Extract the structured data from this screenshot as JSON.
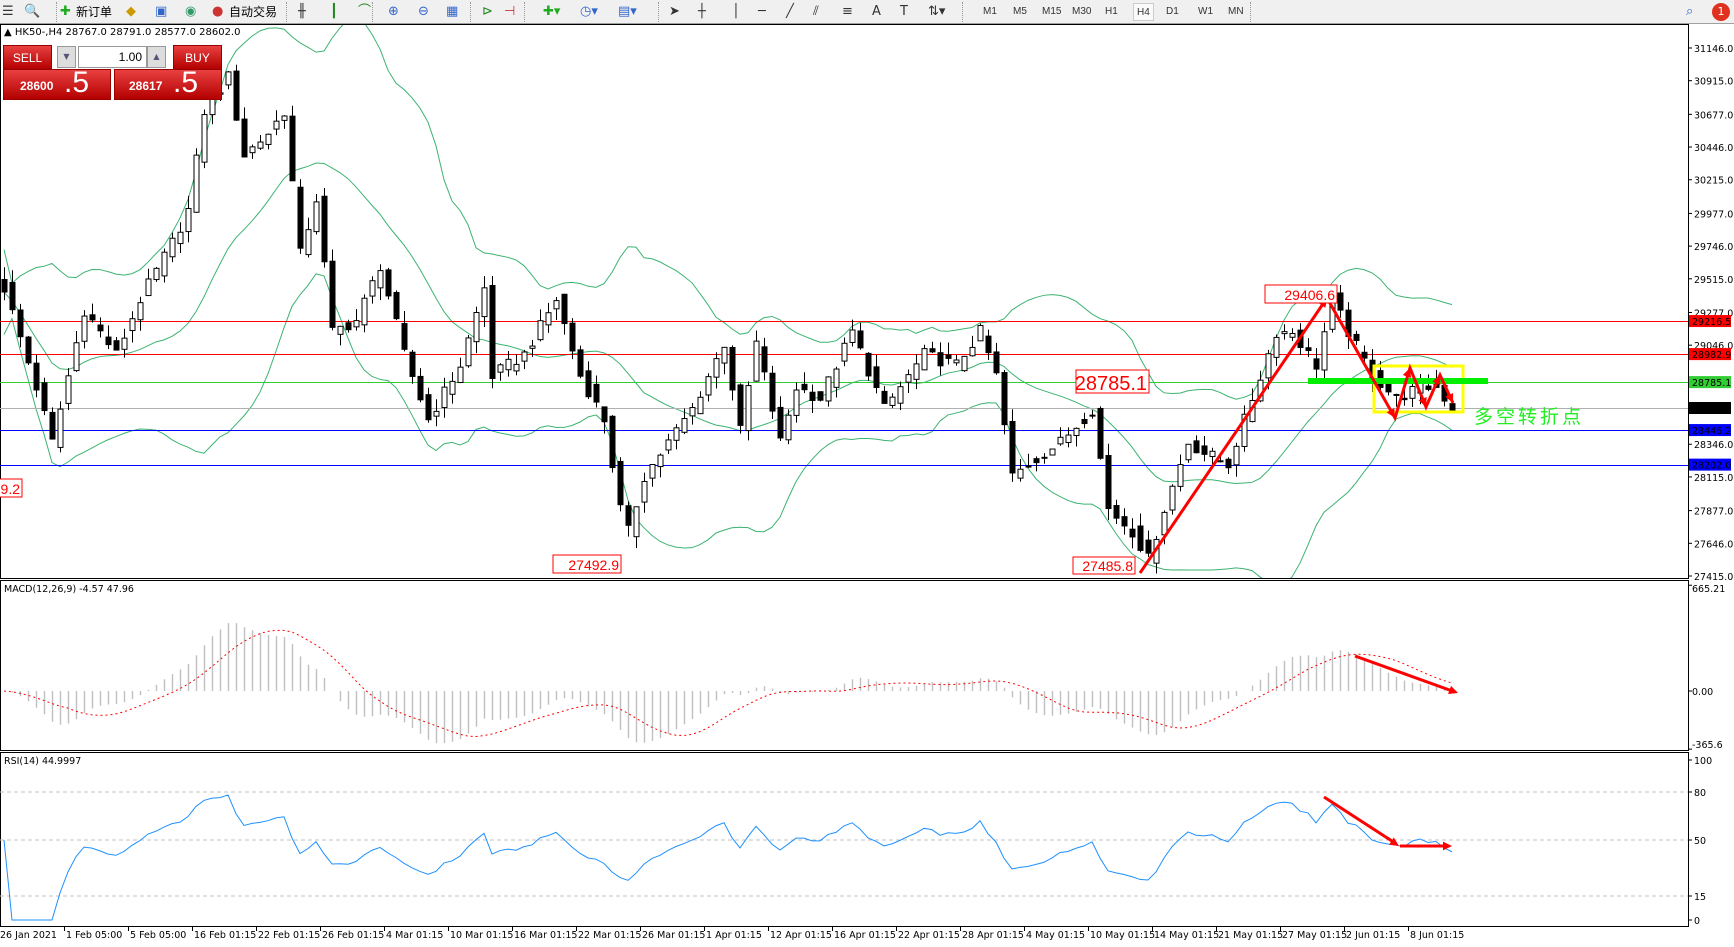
{
  "toolbar": {
    "new_order": "新订单",
    "auto_trading": "自动交易",
    "timeframes": [
      "M1",
      "M5",
      "M15",
      "M30",
      "H1",
      "H4",
      "D1",
      "W1",
      "MN"
    ],
    "selected_timeframe": "H4",
    "notification_count": "1"
  },
  "chart_title": "HK50-,H4  28767.0 28791.0 28577.0 28602.0",
  "trade_panel": {
    "sell_label": "SELL",
    "buy_label": "BUY",
    "lot": "1.00",
    "sell_price_main": "28600",
    "sell_price_frac": ".5",
    "buy_price_main": "28617",
    "buy_price_frac": ".5"
  },
  "chart_data": {
    "type": "candlestick",
    "symbol": "HK50-",
    "timeframe": "H4",
    "price_ticks": [
      "31146.0",
      "30915.0",
      "30677.0",
      "30446.0",
      "30215.0",
      "29977.0",
      "29746.0",
      "29515.0",
      "29277.0",
      "29046.0",
      "28346.0",
      "28115.0",
      "27877.0",
      "27646.0",
      "27415.0"
    ],
    "ylim": [
      27415,
      31146
    ],
    "time_labels": [
      "26 Jan 2021",
      "1 Feb 05:00",
      "5 Feb 05:00",
      "16 Feb 01:15",
      "22 Feb 01:15",
      "26 Feb 01:15",
      "4 Mar 01:15",
      "10 Mar 01:15",
      "16 Mar 01:15",
      "22 Mar 01:15",
      "26 Mar 01:15",
      "1 Apr 01:15",
      "12 Apr 01:15",
      "16 Apr 01:15",
      "22 Apr 01:15",
      "28 Apr 01:15",
      "4 May 01:15",
      "10 May 01:15",
      "14 May 01:15",
      "21 May 01:15",
      "27 May 01:15",
      "2 Jun 01:15",
      "8 Jun 01:15"
    ],
    "close_path_bar_price": [
      [
        0,
        29450
      ],
      [
        4,
        28750
      ],
      [
        6,
        28360
      ],
      [
        10,
        29295
      ],
      [
        14,
        28980
      ],
      [
        17,
        29370
      ],
      [
        21,
        29770
      ],
      [
        23,
        30000
      ],
      [
        25,
        30700
      ],
      [
        28,
        30940
      ],
      [
        30,
        30390
      ],
      [
        33,
        30545
      ],
      [
        35,
        30700
      ],
      [
        37,
        29690
      ],
      [
        39,
        30080
      ],
      [
        41,
        29140
      ],
      [
        44,
        29220
      ],
      [
        47,
        29610
      ],
      [
        50,
        28980
      ],
      [
        53,
        28520
      ],
      [
        57,
        28905
      ],
      [
        60,
        29450
      ],
      [
        61,
        28830
      ],
      [
        65,
        28980
      ],
      [
        69,
        29370
      ],
      [
        72,
        28830
      ],
      [
        75,
        28520
      ],
      [
        77,
        27890
      ],
      [
        78,
        27730
      ],
      [
        80,
        28120
      ],
      [
        83,
        28360
      ],
      [
        86,
        28595
      ],
      [
        90,
        29060
      ],
      [
        92,
        28440
      ],
      [
        94,
        29060
      ],
      [
        97,
        28360
      ],
      [
        99,
        28750
      ],
      [
        102,
        28670
      ],
      [
        106,
        29140
      ],
      [
        110,
        28595
      ],
      [
        115,
        28980
      ],
      [
        119,
        28905
      ],
      [
        122,
        29140
      ],
      [
        124,
        28830
      ],
      [
        126,
        28120
      ],
      [
        130,
        28285
      ],
      [
        132,
        28360
      ],
      [
        136,
        28595
      ],
      [
        138,
        27890
      ],
      [
        141,
        27730
      ],
      [
        143,
        27535
      ],
      [
        145,
        27890
      ],
      [
        148,
        28360
      ],
      [
        150,
        28285
      ],
      [
        153,
        28205
      ],
      [
        156,
        28670
      ],
      [
        159,
        29140
      ],
      [
        161,
        29140
      ],
      [
        164,
        28905
      ],
      [
        166,
        29370
      ],
      [
        168,
        29140
      ],
      [
        171,
        28830
      ],
      [
        174,
        28670
      ],
      [
        177,
        28750
      ],
      [
        179,
        28750
      ],
      [
        181,
        28602
      ]
    ],
    "bollinger_color": "#3cb371",
    "horizontal_lines": [
      {
        "price": 29216.5,
        "label": "29216.5",
        "color": "#ff0000"
      },
      {
        "price": 28982.9,
        "label": "28982.9",
        "color": "#ff0000"
      },
      {
        "price": 28785.1,
        "label": "28785.1",
        "color": "#32cd32"
      },
      {
        "price": 28602.0,
        "label": "28602.0",
        "color": "#000000"
      },
      {
        "price": 28446.2,
        "label": "28446.2",
        "color": "#0000ff"
      },
      {
        "price": 28202.0,
        "label": "28202.0",
        "color": "#0000ff"
      }
    ],
    "price_labels": [
      "29406.6",
      "28785.1",
      "27492.9",
      "27485.8",
      "9.2"
    ],
    "annotation_text": "多空转折点",
    "macd": {
      "label": "MACD(12,26,9) -4.57 47.96",
      "ticks": [
        "665.21",
        "0.00",
        "-365.6"
      ]
    },
    "rsi": {
      "label": "RSI(14) 44.9997",
      "ticks": [
        "100",
        "80",
        "50",
        "15",
        "0"
      ],
      "levels": [
        80,
        50,
        15
      ],
      "color": "#1e90ff"
    }
  }
}
